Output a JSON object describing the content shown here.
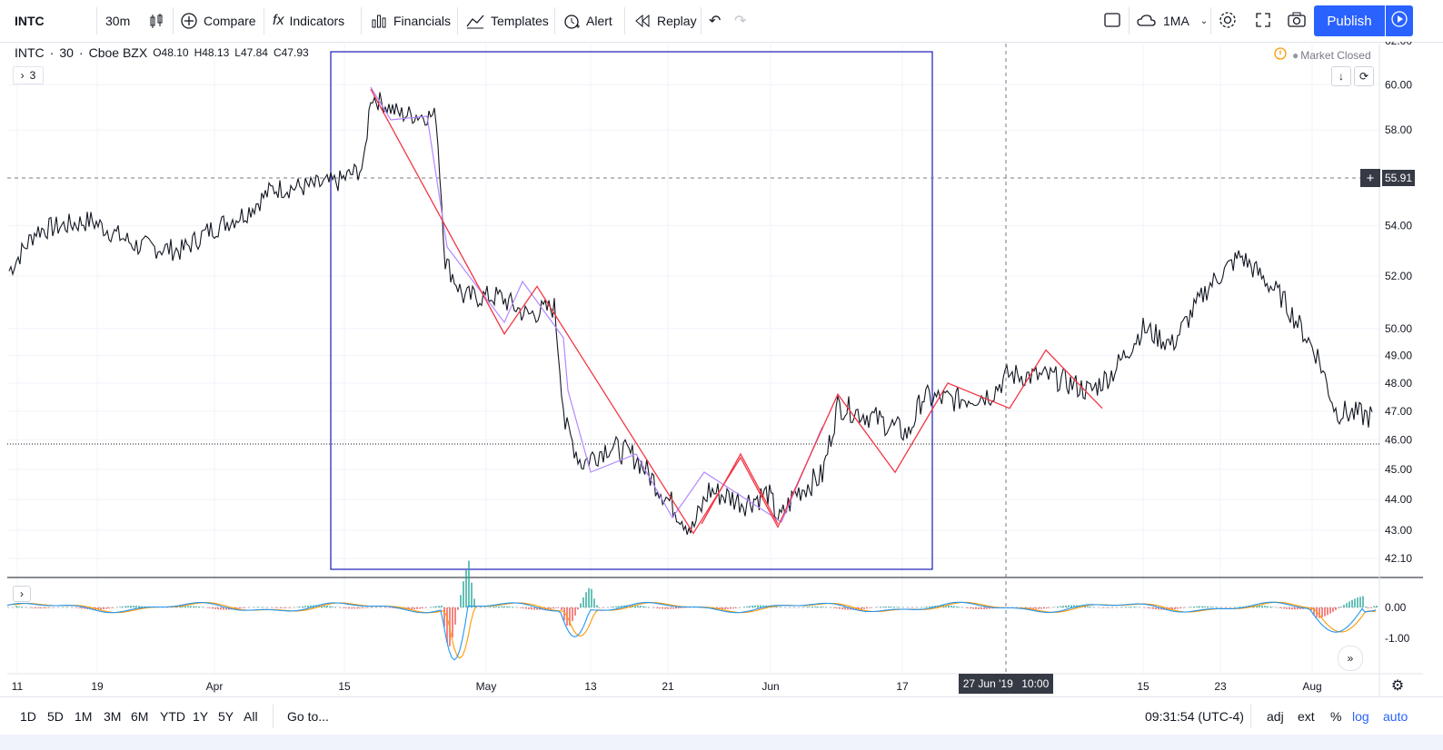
{
  "toolbar": {
    "symbol": "INTC",
    "interval": "30m",
    "compare": "Compare",
    "indicators": "Indicators",
    "financials": "Financials",
    "templates": "Templates",
    "alert": "Alert",
    "replay": "Replay",
    "layout": "1MA",
    "publish": "Publish"
  },
  "legend": {
    "symbol": "INTC",
    "interval": "30",
    "exchange": "Cboe BZX",
    "open": "O48.10",
    "high": "H48.13",
    "low": "L47.84",
    "close": "C47.93",
    "collapsed_count": "3"
  },
  "status": {
    "market": "Market Closed"
  },
  "price_axis": {
    "ticks": [
      "62.00",
      "60.00",
      "58.00",
      "54.00",
      "52.00",
      "50.00",
      "49.00",
      "48.00",
      "47.00",
      "46.00",
      "45.00",
      "44.00",
      "43.00",
      "42.10"
    ],
    "crosshair_price": "55.91",
    "scale": "log"
  },
  "indicator_axis": {
    "ticks": [
      "0.00",
      "-1.00"
    ]
  },
  "time_axis": {
    "ticks": [
      "11",
      "19",
      "Apr",
      "15",
      "May",
      "13",
      "21",
      "Jun",
      "17",
      "15",
      "23",
      "Aug"
    ],
    "crosshair_date": "27 Jun '19",
    "crosshair_time": "10:00"
  },
  "bottom": {
    "ranges": [
      "1D",
      "5D",
      "1M",
      "3M",
      "6M",
      "YTD",
      "1Y",
      "5Y",
      "All"
    ],
    "goto": "Go to...",
    "clock": "09:31:54 (UTC-4)",
    "adj": "adj",
    "ext": "ext",
    "pct": "%",
    "log": "log",
    "auto": "auto"
  },
  "colors": {
    "candles": "#131722",
    "zigzag": "#f23645",
    "path": "#b388ff",
    "box": "#1a1ab8",
    "macd": "#2196f3",
    "signal": "#ff9800",
    "hist_pos": "#26a69a",
    "hist_neg": "#ef5350",
    "accent": "#2962ff"
  },
  "chart_data": {
    "type": "line",
    "xlabel": "",
    "ylabel": "",
    "series": [
      {
        "values": [
          [
            "11",
            52.2
          ],
          [
            "14",
            53.8
          ],
          [
            "19",
            54.2
          ],
          [
            "22",
            53.2
          ],
          [
            "26",
            53.0
          ],
          [
            "29",
            53.8
          ],
          [
            "Apr",
            54.5
          ],
          [
            "5",
            55.5
          ],
          [
            "9",
            55.6
          ],
          [
            "12",
            55.8
          ],
          [
            "15",
            56.4
          ],
          [
            "16",
            59.5
          ],
          [
            "18",
            58.7
          ],
          [
            "23",
            58.6
          ],
          [
            "25",
            52.6
          ],
          [
            "May",
            51.2
          ],
          [
            "6",
            51.2
          ],
          [
            "8",
            50.5
          ],
          [
            "10",
            50.8
          ],
          [
            "13",
            46.5
          ],
          [
            "15",
            45.2
          ],
          [
            "17",
            45.8
          ],
          [
            "20",
            45.4
          ],
          [
            "21",
            44.0
          ],
          [
            "23",
            43.0
          ],
          [
            "24",
            44.3
          ],
          [
            "28",
            43.9
          ],
          [
            "30",
            44.2
          ],
          [
            "31",
            43.3
          ],
          [
            "Jun",
            44.2
          ],
          [
            "5",
            44.8
          ],
          [
            "7",
            47.2
          ],
          [
            "11",
            46.8
          ],
          [
            "13",
            46.2
          ],
          [
            "17",
            47.5
          ],
          [
            "20",
            47.4
          ],
          [
            "25",
            47.6
          ],
          [
            "27",
            48.3
          ],
          [
            "Jul",
            48.2
          ],
          [
            "5",
            47.7
          ],
          [
            "10",
            48.4
          ],
          [
            "15",
            50.0
          ],
          [
            "19",
            49.4
          ],
          [
            "23",
            51.6
          ],
          [
            "26",
            52.8
          ],
          [
            "30",
            51.2
          ],
          [
            "Aug",
            49.0
          ],
          [
            "5",
            47.0
          ],
          [
            "7",
            46.8
          ]
        ]
      }
    ],
    "zigzag": [
      59.8,
      49.8,
      51.6,
      42.9,
      45.4,
      43.1,
      45.4,
      43.1,
      47.6,
      44.9,
      48.0,
      47.1,
      49.2,
      47.1
    ],
    "indicator": {
      "name": "MACD",
      "ylim": [
        -1.8,
        0.5
      ]
    }
  }
}
